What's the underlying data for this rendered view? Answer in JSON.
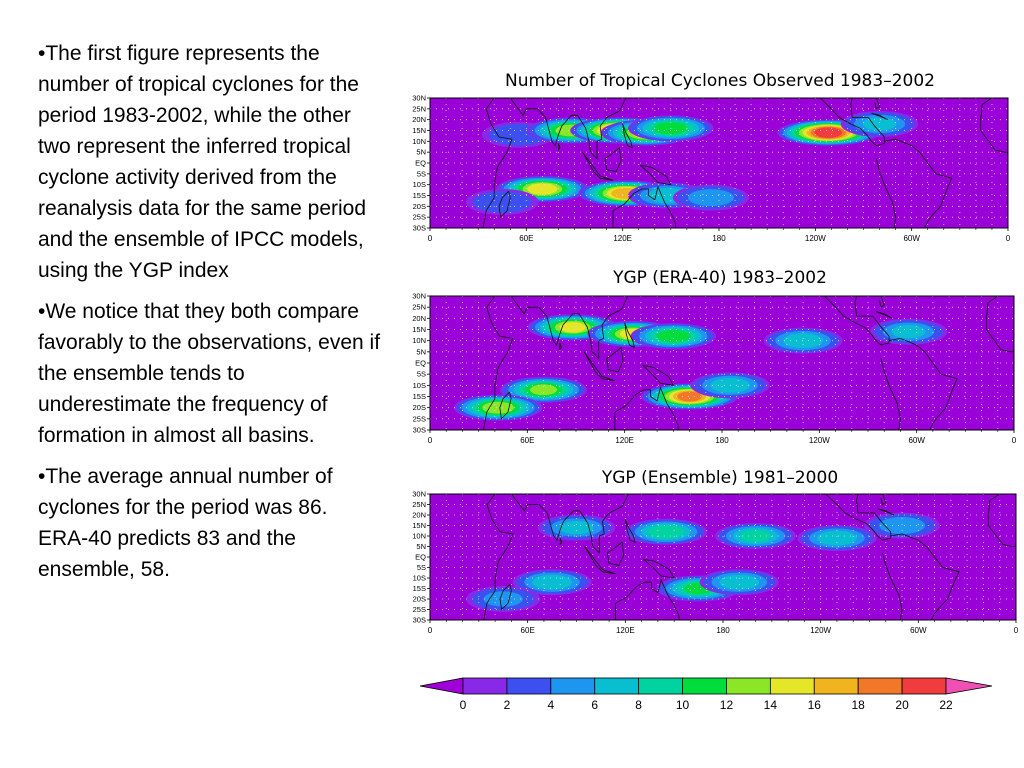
{
  "bullets": [
    "•The first figure represents the number of tropical cyclones for the period 1983-2002, while the other two represent the inferred tropical cyclone activity derived from the reanalysis data for the same period and the ensemble of IPCC models, using the YGP index",
    "•We notice that they both compare favorably to the observations, even if the ensemble tends to underestimate the frequency of formation in almost all basins.",
    "•The average annual number of cyclones for the period was 86.  ERA-40 predicts 83 and the ensemble, 58."
  ],
  "colors": {
    "background_map": "#9a00d8",
    "scale": [
      "#a000d8",
      "#8a28e8",
      "#3c50f0",
      "#1e96f0",
      "#0abed2",
      "#00d2a0",
      "#00dc3c",
      "#8ce628",
      "#e6e628",
      "#f0b41e",
      "#f07828",
      "#f03c3c",
      "#f050b4"
    ]
  },
  "chart_data": [
    {
      "type": "heatmap",
      "title": "Number of Tropical Cyclones Observed 1983–2002",
      "lat_ticks": [
        "30N",
        "25N",
        "20N",
        "15N",
        "10N",
        "5N",
        "EQ",
        "5S",
        "10S",
        "15S",
        "20S",
        "25S",
        "30S"
      ],
      "lon_ticks": [
        "0",
        "60E",
        "120E",
        "180",
        "120W",
        "60W",
        "0"
      ],
      "hotspots": [
        {
          "lon": 55,
          "lat": 13,
          "value": 3
        },
        {
          "lon": 88,
          "lat": 15,
          "value": 13
        },
        {
          "lon": 118,
          "lat": 15,
          "value": 19
        },
        {
          "lon": 135,
          "lat": 14,
          "value": 15
        },
        {
          "lon": 150,
          "lat": 16,
          "value": 11
        },
        {
          "lon": 248,
          "lat": 14,
          "value": 21
        },
        {
          "lon": 280,
          "lat": 18,
          "value": 6
        },
        {
          "lon": 70,
          "lat": -12,
          "value": 15
        },
        {
          "lon": 122,
          "lat": -14,
          "value": 17
        },
        {
          "lon": 148,
          "lat": -15,
          "value": 7
        },
        {
          "lon": 175,
          "lat": -16,
          "value": 5
        },
        {
          "lon": 45,
          "lat": -18,
          "value": 3
        }
      ]
    },
    {
      "type": "heatmap",
      "title": "YGP (ERA-40) 1983–2002",
      "lat_ticks": [
        "30N",
        "25N",
        "20N",
        "15N",
        "10N",
        "5N",
        "EQ",
        "5S",
        "10S",
        "15S",
        "20S",
        "25S",
        "30S"
      ],
      "lon_ticks": [
        "0",
        "60E",
        "120E",
        "180",
        "120W",
        "60W",
        "0"
      ],
      "hotspots": [
        {
          "lon": 88,
          "lat": 16,
          "value": 14
        },
        {
          "lon": 125,
          "lat": 13,
          "value": 14
        },
        {
          "lon": 150,
          "lat": 12,
          "value": 11
        },
        {
          "lon": 230,
          "lat": 10,
          "value": 7
        },
        {
          "lon": 295,
          "lat": 14,
          "value": 6
        },
        {
          "lon": 70,
          "lat": -12,
          "value": 12
        },
        {
          "lon": 160,
          "lat": -15,
          "value": 18
        },
        {
          "lon": 42,
          "lat": -20,
          "value": 13
        },
        {
          "lon": 185,
          "lat": -10,
          "value": 7
        }
      ]
    },
    {
      "type": "heatmap",
      "title": "YGP (Ensemble) 1981–2000",
      "lat_ticks": [
        "30N",
        "25N",
        "20N",
        "15N",
        "10N",
        "5N",
        "EQ",
        "5S",
        "10S",
        "15S",
        "20S",
        "25S",
        "30S"
      ],
      "lon_ticks": [
        "0",
        "60E",
        "120E",
        "180",
        "120W",
        "60W",
        "0"
      ],
      "hotspots": [
        {
          "lon": 90,
          "lat": 14,
          "value": 6
        },
        {
          "lon": 145,
          "lat": 12,
          "value": 9
        },
        {
          "lon": 200,
          "lat": 10,
          "value": 8
        },
        {
          "lon": 250,
          "lat": 9,
          "value": 7
        },
        {
          "lon": 290,
          "lat": 15,
          "value": 5
        },
        {
          "lon": 75,
          "lat": -12,
          "value": 7
        },
        {
          "lon": 165,
          "lat": -15,
          "value": 10
        },
        {
          "lon": 190,
          "lat": -12,
          "value": 7
        },
        {
          "lon": 45,
          "lat": -20,
          "value": 4
        }
      ]
    }
  ],
  "colorbar": {
    "labels": [
      "0",
      "2",
      "4",
      "6",
      "8",
      "10",
      "12",
      "14",
      "16",
      "18",
      "20",
      "22"
    ]
  }
}
